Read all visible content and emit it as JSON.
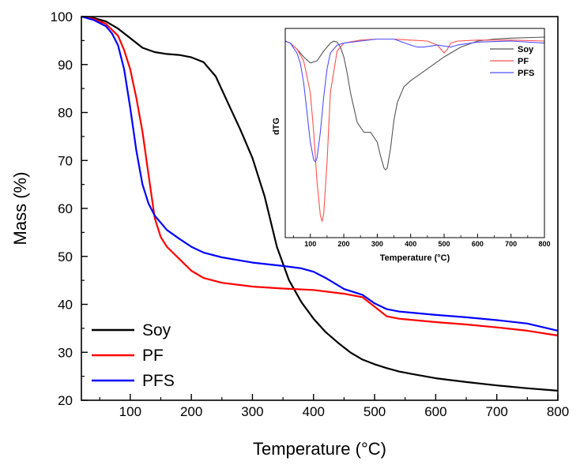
{
  "chart_data": [
    {
      "type": "line",
      "xlabel": "Temperature (°C)",
      "ylabel": "Mass (%)",
      "xlim": [
        20,
        800
      ],
      "ylim": [
        20,
        100
      ],
      "xticks": [
        100,
        200,
        300,
        400,
        500,
        600,
        700,
        800
      ],
      "yticks": [
        20,
        30,
        40,
        50,
        60,
        70,
        80,
        90,
        100
      ],
      "grid": false,
      "legend_position": "bottom-left",
      "series": [
        {
          "name": "Soy",
          "color": "#000000",
          "x": [
            20,
            40,
            60,
            80,
            100,
            120,
            140,
            160,
            180,
            200,
            220,
            240,
            260,
            280,
            300,
            320,
            340,
            360,
            380,
            400,
            420,
            440,
            460,
            480,
            500,
            520,
            540,
            560,
            600,
            650,
            700,
            750,
            800
          ],
          "y": [
            100,
            99.7,
            99,
            97.5,
            95.5,
            93.5,
            92.6,
            92.2,
            92,
            91.5,
            90.5,
            87.5,
            82,
            76.5,
            70.5,
            62.5,
            52,
            45,
            40.5,
            37,
            34.2,
            32,
            30,
            28.5,
            27.5,
            26.7,
            26,
            25.5,
            24.6,
            23.8,
            23.1,
            22.5,
            22
          ]
        },
        {
          "name": "PF",
          "color": "#ff0000",
          "x": [
            20,
            40,
            60,
            80,
            90,
            100,
            110,
            120,
            130,
            140,
            150,
            160,
            180,
            200,
            220,
            250,
            300,
            350,
            400,
            450,
            480,
            500,
            520,
            540,
            600,
            650,
            700,
            750,
            800
          ],
          "y": [
            100,
            99.5,
            98.5,
            96,
            93,
            89,
            83,
            76,
            67,
            58,
            54,
            52,
            49.5,
            47,
            45.5,
            44.5,
            43.7,
            43.3,
            43,
            42.2,
            41.5,
            39.5,
            37.5,
            37,
            36.3,
            35.8,
            35.2,
            34.5,
            33.5
          ]
        },
        {
          "name": "PFS",
          "color": "#0000ff",
          "x": [
            20,
            40,
            60,
            70,
            80,
            90,
            100,
            110,
            120,
            130,
            140,
            150,
            160,
            180,
            200,
            220,
            250,
            300,
            350,
            380,
            400,
            420,
            450,
            480,
            500,
            520,
            540,
            600,
            650,
            700,
            750,
            800
          ],
          "y": [
            100,
            99.3,
            98,
            96.5,
            94,
            89,
            81,
            72,
            65,
            61,
            58.5,
            57,
            55.5,
            53.7,
            52,
            50.8,
            49.8,
            48.7,
            48,
            47.5,
            46.8,
            45.5,
            43.2,
            42,
            40.2,
            39,
            38.5,
            37.8,
            37.3,
            36.7,
            36,
            34.5
          ]
        }
      ]
    },
    {
      "type": "line",
      "xlabel": "Temperature (°C)",
      "ylabel": "dTG",
      "xlim": [
        25,
        800
      ],
      "ylim": [
        0,
        1
      ],
      "xticks": [
        100,
        200,
        300,
        400,
        500,
        600,
        700,
        800
      ],
      "yticks": [],
      "grid": false,
      "legend_position": "top-right",
      "series": [
        {
          "name": "Soy",
          "color": "#555555",
          "x": [
            25,
            40,
            60,
            80,
            100,
            120,
            140,
            160,
            170,
            180,
            190,
            200,
            210,
            220,
            240,
            260,
            280,
            300,
            310,
            320,
            325,
            330,
            340,
            350,
            360,
            380,
            400,
            450,
            500,
            550,
            600,
            650,
            700,
            800
          ],
          "y": [
            0.96,
            0.95,
            0.92,
            0.88,
            0.85,
            0.86,
            0.91,
            0.95,
            0.96,
            0.955,
            0.93,
            0.88,
            0.8,
            0.7,
            0.55,
            0.5,
            0.5,
            0.45,
            0.38,
            0.32,
            0.31,
            0.32,
            0.42,
            0.56,
            0.65,
            0.73,
            0.76,
            0.82,
            0.88,
            0.93,
            0.96,
            0.97,
            0.975,
            0.98
          ]
        },
        {
          "name": "PF",
          "color": "#ff5050",
          "x": [
            25,
            40,
            60,
            80,
            100,
            110,
            120,
            130,
            135,
            140,
            150,
            160,
            180,
            200,
            250,
            300,
            350,
            400,
            450,
            480,
            490,
            500,
            510,
            520,
            540,
            600,
            700,
            800
          ],
          "y": [
            0.96,
            0.95,
            0.92,
            0.86,
            0.7,
            0.5,
            0.25,
            0.08,
            0.05,
            0.09,
            0.35,
            0.7,
            0.91,
            0.95,
            0.965,
            0.97,
            0.97,
            0.965,
            0.96,
            0.94,
            0.92,
            0.9,
            0.92,
            0.95,
            0.96,
            0.965,
            0.965,
            0.96
          ]
        },
        {
          "name": "PFS",
          "color": "#5050ff",
          "x": [
            25,
            40,
            60,
            70,
            80,
            90,
            100,
            110,
            115,
            120,
            130,
            140,
            150,
            160,
            180,
            200,
            250,
            300,
            350,
            400,
            420,
            440,
            460,
            480,
            500,
            520,
            540,
            600,
            700,
            800
          ],
          "y": [
            0.96,
            0.95,
            0.9,
            0.85,
            0.75,
            0.6,
            0.45,
            0.36,
            0.35,
            0.37,
            0.5,
            0.68,
            0.82,
            0.9,
            0.94,
            0.95,
            0.96,
            0.97,
            0.97,
            0.94,
            0.93,
            0.93,
            0.935,
            0.94,
            0.935,
            0.93,
            0.94,
            0.955,
            0.96,
            0.95
          ]
        }
      ]
    }
  ]
}
